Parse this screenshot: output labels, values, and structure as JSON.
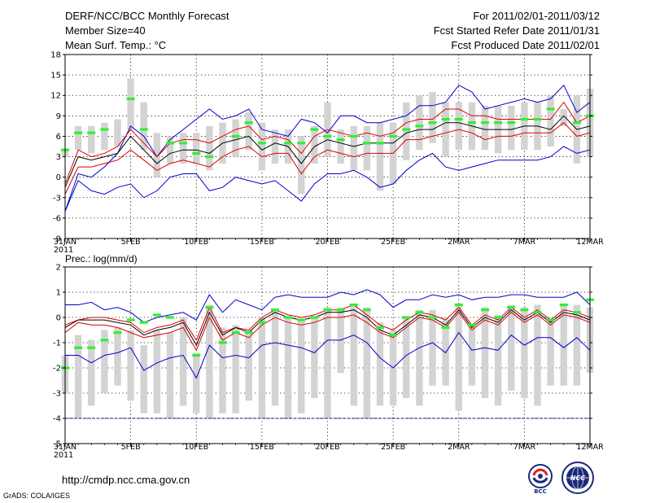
{
  "header": {
    "title": "DERF/NCC/BCC Monthly Forecast",
    "member_size": "Member Size=40",
    "variable": "Mean Surf. Temp.: °C",
    "period": "For 2011/02/01-2011/03/12",
    "fcst_started": "Fcst Started Refer Date 2011/01/31",
    "fcst_produced": "Fcst Produced Date 2011/02/01"
  },
  "footer": {
    "url": "http://cmdp.ncc.cma.gov.cn",
    "credit": "GrADS: COLA/IGES",
    "logo_bcc": "BCC",
    "logo_ncc": "NCC"
  },
  "colors": {
    "box": "#d3d3d3",
    "obs": "#33ee33",
    "median": "#000000",
    "quartile": "#dd0000",
    "extreme": "#0000cc",
    "grid": "#000000"
  },
  "chart_data": [
    {
      "type": "line",
      "title": "Mean Surf. Temp.: °C",
      "x": [
        0,
        1,
        2,
        3,
        4,
        5,
        6,
        7,
        8,
        9,
        10,
        11,
        12,
        13,
        14,
        15,
        16,
        17,
        18,
        19,
        20,
        21,
        22,
        23,
        24,
        25,
        26,
        27,
        28,
        29,
        30,
        31,
        32,
        33,
        34,
        35,
        36,
        37,
        38,
        39,
        40
      ],
      "xlim": [
        0,
        40
      ],
      "ylim": [
        -9,
        18
      ],
      "yticks": [
        -6,
        -3,
        0,
        3,
        6,
        9,
        12,
        15,
        18
      ],
      "ytick_labels": [
        "-6",
        "-3",
        "0",
        "3",
        "6",
        "9",
        "12",
        "15",
        "18"
      ],
      "ymin_label": "-9",
      "xticks": [
        0,
        5,
        10,
        15,
        20,
        25,
        30,
        35,
        40
      ],
      "xtick_labels": [
        "31JAN",
        "5FEB",
        "10FEB",
        "15FEB",
        "20FEB",
        "25FEB",
        "2MAR",
        "7MAR",
        "12MAR"
      ],
      "year_label": "2011",
      "series": [
        {
          "name": "max",
          "values": [
            -5,
            0.5,
            0,
            1.5,
            3.5,
            7.5,
            6,
            3,
            5.5,
            7,
            8.5,
            10,
            8.5,
            9,
            10,
            7,
            6.5,
            6,
            8.5,
            8,
            6.5,
            9,
            9,
            8,
            8,
            8.5,
            9,
            10.5,
            10.5,
            11,
            13.5,
            12.5,
            10,
            10.5,
            11,
            11.5,
            11,
            11.5,
            13.5,
            9.5,
            11
          ]
        },
        {
          "name": "p75",
          "values": [
            -1,
            4,
            3,
            3.5,
            4.5,
            7,
            5,
            3,
            5,
            5.5,
            5.5,
            5,
            6,
            7,
            7.5,
            5.5,
            6,
            5.5,
            3.5,
            6,
            7,
            6.5,
            6,
            6.5,
            6,
            6.5,
            8,
            8.5,
            8.5,
            10,
            10,
            9,
            9,
            8.5,
            8.5,
            8.5,
            8.5,
            8.5,
            11,
            8,
            9
          ]
        },
        {
          "name": "median",
          "values": [
            -1.5,
            3,
            2.5,
            3,
            3.5,
            6,
            4,
            2,
            3.5,
            4,
            4,
            3.5,
            5,
            5.5,
            6,
            4,
            5,
            4.5,
            2,
            4.5,
            5.5,
            5,
            4.5,
            5,
            5,
            5,
            6.5,
            7,
            7,
            8,
            8,
            7.5,
            7,
            7,
            7,
            7.5,
            7.5,
            7,
            9,
            7,
            7.5
          ]
        },
        {
          "name": "p25",
          "values": [
            -2.5,
            1.5,
            1.5,
            2,
            2.5,
            4,
            2.5,
            1,
            2,
            2.5,
            2,
            1.5,
            3,
            4,
            4.5,
            3,
            3.5,
            3.5,
            0.5,
            3,
            4,
            3.5,
            3,
            3.5,
            3.5,
            3.5,
            5.5,
            5.5,
            6,
            6.5,
            7,
            6.5,
            5.5,
            6,
            6,
            6.5,
            6.5,
            6.5,
            8,
            6,
            6.5
          ]
        },
        {
          "name": "min",
          "values": [
            -5,
            -0.5,
            -2,
            -2.5,
            -1.5,
            -1,
            -3,
            -2,
            0,
            0.5,
            0.5,
            -2,
            -1.5,
            0,
            -0.5,
            -1,
            -0.5,
            -2,
            -3.5,
            -1,
            0.5,
            0.5,
            1,
            0,
            -1.5,
            -1,
            1,
            2.5,
            3.5,
            1.5,
            1,
            1.5,
            2,
            2.5,
            2.5,
            2.5,
            2.5,
            3,
            4.5,
            3.5,
            4
          ]
        },
        {
          "name": "obs",
          "values": [
            4,
            6.5,
            6.5,
            7,
            null,
            11.5,
            7,
            null,
            5,
            5,
            3.5,
            3,
            null,
            6,
            8,
            5,
            null,
            5,
            5,
            7,
            6,
            5.5,
            6,
            5,
            5,
            6,
            7,
            7.5,
            8,
            8.5,
            8.5,
            8,
            8,
            8,
            8,
            8.5,
            8.5,
            10,
            null,
            8,
            9
          ]
        },
        {
          "name": "box_low",
          "values": [
            3,
            4,
            3.5,
            4,
            4.5,
            7,
            4,
            0,
            2,
            2,
            2,
            1,
            2,
            3,
            4,
            1,
            2,
            2,
            -2.5,
            2,
            3,
            2,
            1,
            1,
            -2,
            -1,
            2.5,
            4,
            5,
            3,
            4,
            4,
            4,
            3.5,
            4,
            4,
            4,
            4.5,
            7.5,
            2,
            3
          ]
        },
        {
          "name": "box_high",
          "values": [
            4,
            7.5,
            7.5,
            8,
            8.5,
            14.5,
            11,
            6.5,
            6,
            6.5,
            6.5,
            7.5,
            8,
            8.5,
            9.5,
            8,
            7,
            7,
            6,
            7.5,
            11,
            7,
            7.5,
            7.5,
            8,
            8,
            11,
            12,
            12.5,
            11,
            11,
            11,
            10.5,
            10.5,
            10.5,
            11,
            11,
            12,
            10,
            12,
            13
          ]
        }
      ]
    },
    {
      "type": "line",
      "title": "Prec.: log(mm/d)",
      "x": [
        0,
        1,
        2,
        3,
        4,
        5,
        6,
        7,
        8,
        9,
        10,
        11,
        12,
        13,
        14,
        15,
        16,
        17,
        18,
        19,
        20,
        21,
        22,
        23,
        24,
        25,
        26,
        27,
        28,
        29,
        30,
        31,
        32,
        33,
        34,
        35,
        36,
        37,
        38,
        39,
        40
      ],
      "xlim": [
        0,
        40
      ],
      "ylim": [
        -5,
        2
      ],
      "yticks": [
        -5,
        -4,
        -3,
        -2,
        -1,
        0,
        1,
        2
      ],
      "ytick_labels": [
        "-5",
        "-4",
        "-3",
        "-2",
        "-1",
        "0",
        "1",
        "2"
      ],
      "xticks": [
        0,
        5,
        10,
        15,
        20,
        25,
        30,
        35,
        40
      ],
      "xtick_labels": [
        "31JAN",
        "5FEB",
        "10FEB",
        "15FEB",
        "20FEB",
        "25FEB",
        "2MAR",
        "7MAR",
        "12MAR"
      ],
      "year_label": "2011",
      "threshold": -4,
      "series": [
        {
          "name": "max",
          "values": [
            0.5,
            0.5,
            0.6,
            0.3,
            0.4,
            0.2,
            -0.2,
            0,
            0.1,
            0.2,
            -0.1,
            0.9,
            0.2,
            0.7,
            0.5,
            0.3,
            0.8,
            0.9,
            0.8,
            0.8,
            0.8,
            1,
            0.9,
            1.1,
            0.9,
            0.4,
            0.7,
            0.7,
            0.9,
            0.8,
            0.9,
            0.7,
            0.8,
            0.8,
            0.9,
            0.9,
            0.8,
            0.8,
            0.8,
            1,
            0.5
          ]
        },
        {
          "name": "p75",
          "values": [
            -0.3,
            -0.1,
            0,
            0,
            -0.1,
            -0.2,
            -0.6,
            -0.4,
            -0.3,
            -0.1,
            -0.9,
            0.4,
            -0.6,
            -0.4,
            -0.5,
            0,
            0.3,
            0.1,
            0,
            0.1,
            0.3,
            0.3,
            0.5,
            0.1,
            -0.3,
            -0.5,
            -0.1,
            0.2,
            0.1,
            -0.1,
            0.4,
            -0.3,
            0.1,
            -0.1,
            0.4,
            0,
            0.3,
            -0.1,
            0.3,
            0.2,
            0
          ]
        },
        {
          "name": "median",
          "values": [
            -0.4,
            -0.1,
            -0.1,
            -0.1,
            -0.2,
            -0.3,
            -0.7,
            -0.5,
            -0.4,
            -0.2,
            -1.1,
            0.2,
            -0.7,
            -0.4,
            -0.6,
            -0.1,
            0.2,
            0,
            -0.1,
            0,
            0.2,
            0.2,
            0.3,
            0,
            -0.5,
            -0.7,
            -0.3,
            0.1,
            0,
            -0.3,
            0.3,
            -0.4,
            0,
            -0.2,
            0.3,
            -0.1,
            0.2,
            -0.2,
            0.2,
            0.1,
            -0.1
          ]
        },
        {
          "name": "p25",
          "values": [
            -0.6,
            -0.2,
            -0.3,
            -0.3,
            -0.4,
            -0.6,
            -0.8,
            -0.7,
            -0.6,
            -0.4,
            -1.3,
            0,
            -0.9,
            -0.6,
            -0.8,
            -0.3,
            0,
            -0.2,
            -0.3,
            -0.2,
            0,
            0,
            0.1,
            -0.2,
            -0.6,
            -0.8,
            -0.4,
            0,
            -0.1,
            -0.4,
            0.2,
            -0.5,
            -0.1,
            -0.3,
            0.2,
            -0.2,
            0.1,
            -0.3,
            0.1,
            0,
            -0.2
          ]
        },
        {
          "name": "min",
          "values": [
            -1.5,
            -1.5,
            -1.8,
            -1.5,
            -1.4,
            -1.2,
            -2.1,
            -1.8,
            -1.6,
            -1.5,
            -2.4,
            -1.1,
            -1.6,
            -1.5,
            -1.6,
            -1.1,
            -1,
            -1.1,
            -1.2,
            -1.4,
            -0.9,
            -0.9,
            -0.7,
            -1,
            -1.6,
            -2,
            -1.5,
            -1.2,
            -1,
            -1.4,
            -0.6,
            -1.3,
            -1.2,
            -1.3,
            -0.7,
            -1.1,
            -0.8,
            -0.8,
            -1.2,
            -0.8,
            -1.3
          ]
        },
        {
          "name": "obs",
          "values": [
            -2,
            -1.2,
            -1.2,
            -0.9,
            -0.6,
            -0.1,
            -0.2,
            0.1,
            0,
            null,
            -1.5,
            0.4,
            -1,
            -0.6,
            -0.6,
            -0.2,
            0.3,
            0,
            -0.1,
            0,
            0.3,
            0.3,
            0.5,
            0.3,
            -0.4,
            -0.7,
            0,
            0.2,
            0,
            -0.4,
            0.5,
            -0.3,
            0.3,
            0,
            0.4,
            0.3,
            0.2,
            -0.1,
            0.5,
            0.2,
            0.7
          ]
        },
        {
          "name": "box_low",
          "values": [
            -3,
            -4,
            -3.5,
            -3,
            -2.7,
            -3.3,
            -3.8,
            -3.8,
            -4,
            -3.5,
            -3.8,
            -4,
            -3.8,
            -3.8,
            -3.3,
            -4,
            -3.5,
            -4,
            -3.8,
            -3.2,
            -4,
            -2.2,
            -3.5,
            -4,
            -3.5,
            -3.5,
            -3.2,
            -3.5,
            -2.7,
            -2.7,
            -3.7,
            -2.7,
            -3.2,
            -3.5,
            -2.9,
            -3.2,
            -3.5,
            -2.7,
            -2.7,
            -2.7,
            -2.2
          ]
        },
        {
          "name": "box_high",
          "values": [
            -1.5,
            -0.7,
            -0.9,
            -0.5,
            -0.4,
            -0.5,
            -1.1,
            -0.5,
            -0.6,
            0,
            -1.4,
            0.5,
            -0.4,
            -0.3,
            -0.5,
            0,
            0.3,
            0,
            -0.1,
            0,
            0.4,
            0.4,
            0.5,
            0.4,
            -0.2,
            -0.5,
            0,
            0.3,
            0.3,
            0,
            0.5,
            -0.3,
            0.4,
            0.1,
            0.5,
            0.4,
            0.5,
            0,
            0.5,
            0.5,
            0.4
          ]
        }
      ]
    }
  ]
}
